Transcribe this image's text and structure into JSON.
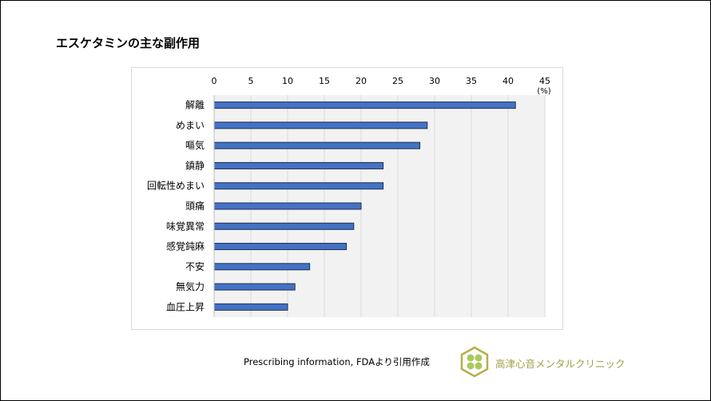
{
  "slide": {
    "title": "エスケタミンの主な副作用",
    "source": "Prescribing information, FDAより引用作成",
    "clinic_name": "高津心音メンタルクリニック",
    "colors": {
      "bar_fill": "#4472c4",
      "bar_stroke": "#1f2f57",
      "plot_bg": "#f2f2f2",
      "grid": "#d9d9d9",
      "logo_gold": "#b7ad4a",
      "logo_green": "#9cbf3f",
      "clinic_text": "#a59e48"
    }
  },
  "chart_data": {
    "type": "bar",
    "orientation": "horizontal",
    "title": "",
    "x_unit_label": "(%)",
    "xlim": [
      0,
      45
    ],
    "xticks": [
      0,
      5,
      10,
      15,
      20,
      25,
      30,
      35,
      40,
      45
    ],
    "x_axis_position": "top",
    "grid": true,
    "categories": [
      "解離",
      "めまい",
      "嘔気",
      "鎮静",
      "回転性めまい",
      "頭痛",
      "味覚異常",
      "感覚鈍麻",
      "不安",
      "無気力",
      "血圧上昇"
    ],
    "values": [
      41,
      29,
      28,
      23,
      23,
      20,
      19,
      18,
      13,
      11,
      10
    ]
  }
}
